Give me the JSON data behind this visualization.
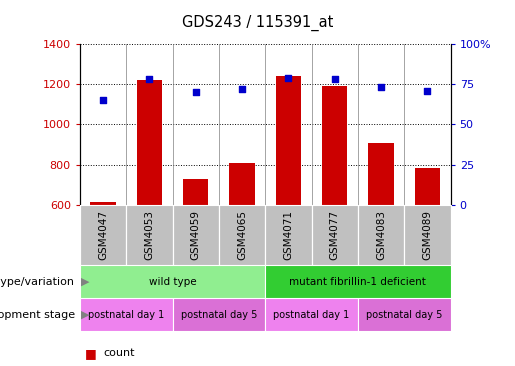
{
  "title": "GDS243 / 115391_at",
  "samples": [
    "GSM4047",
    "GSM4053",
    "GSM4059",
    "GSM4065",
    "GSM4071",
    "GSM4077",
    "GSM4083",
    "GSM4089"
  ],
  "counts": [
    615,
    1220,
    730,
    810,
    1240,
    1190,
    910,
    785
  ],
  "percentile_ranks": [
    65,
    78,
    70,
    72,
    79,
    78,
    73,
    71
  ],
  "ylim_left": [
    600,
    1400
  ],
  "ylim_right": [
    0,
    100
  ],
  "yticks_left": [
    600,
    800,
    1000,
    1200,
    1400
  ],
  "yticks_right": [
    0,
    25,
    50,
    75,
    100
  ],
  "bar_color": "#cc0000",
  "dot_color": "#0000cc",
  "genotype_groups": [
    {
      "label": "wild type",
      "start": 0,
      "end": 4,
      "color": "#90ee90"
    },
    {
      "label": "mutant fibrillin-1 deficient",
      "start": 4,
      "end": 8,
      "color": "#32cd32"
    }
  ],
  "stage_groups": [
    {
      "label": "postnatal day 1",
      "start": 0,
      "end": 2,
      "color": "#ee82ee"
    },
    {
      "label": "postnatal day 5",
      "start": 2,
      "end": 4,
      "color": "#da70d6"
    },
    {
      "label": "postnatal day 1",
      "start": 4,
      "end": 6,
      "color": "#ee82ee"
    },
    {
      "label": "postnatal day 5",
      "start": 6,
      "end": 8,
      "color": "#da70d6"
    }
  ],
  "tick_label_color_left": "#cc0000",
  "tick_label_color_right": "#0000cc",
  "legend_count_color": "#cc0000",
  "legend_dot_color": "#0000cc",
  "sample_bg_color": "#c0c0c0",
  "background_color": "#ffffff"
}
